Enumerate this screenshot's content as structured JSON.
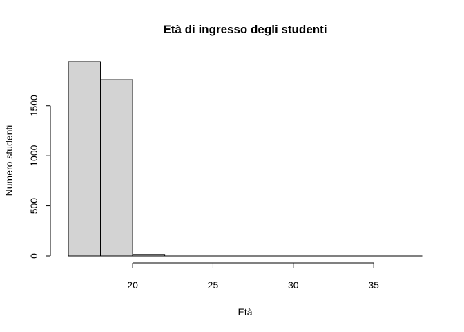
{
  "chart_data": {
    "type": "bar",
    "title": "Età di ingresso degli studenti",
    "xlabel": "Età",
    "ylabel": "Numero studenti",
    "bins": [
      {
        "from": 16,
        "to": 18,
        "count": 1940
      },
      {
        "from": 18,
        "to": 20,
        "count": 1760
      },
      {
        "from": 20,
        "to": 22,
        "count": 15
      },
      {
        "from": 22,
        "to": 24,
        "count": 0
      },
      {
        "from": 24,
        "to": 26,
        "count": 0
      },
      {
        "from": 26,
        "to": 28,
        "count": 0
      },
      {
        "from": 28,
        "to": 30,
        "count": 0
      },
      {
        "from": 30,
        "to": 32,
        "count": 0
      },
      {
        "from": 32,
        "to": 34,
        "count": 0
      },
      {
        "from": 34,
        "to": 36,
        "count": 0
      },
      {
        "from": 36,
        "to": 38,
        "count": 0
      }
    ],
    "xlim": [
      16,
      38
    ],
    "ylim": [
      0,
      1940
    ],
    "x_ticks": [
      20,
      25,
      30,
      35
    ],
    "y_ticks": [
      0,
      500,
      1000,
      1500
    ],
    "x_tick_labels": [
      "20",
      "25",
      "30",
      "35"
    ],
    "y_tick_labels": [
      "0",
      "500",
      "1000",
      "1500"
    ],
    "bar_color": "#d3d3d3",
    "grid": false,
    "legend": "none"
  }
}
